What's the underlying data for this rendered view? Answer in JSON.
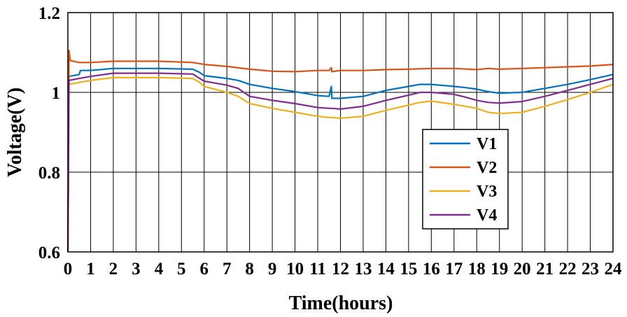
{
  "chart_data": {
    "type": "line",
    "title": "",
    "xlabel": "Time(hours)",
    "ylabel": "Voltage(V)",
    "xlim": [
      0,
      24
    ],
    "ylim": [
      0.6,
      1.2
    ],
    "xticks": [
      "0",
      "1",
      "2",
      "3",
      "4",
      "5",
      "6",
      "7",
      "8",
      "9",
      "10",
      "11",
      "12",
      "13",
      "14",
      "15",
      "16",
      "17",
      "18",
      "19",
      "20",
      "21",
      "22",
      "23",
      "24"
    ],
    "yticks": [
      "0.6",
      "0.8",
      "1",
      "1.2"
    ],
    "grid": true,
    "legend_position": "lower-right",
    "series": [
      {
        "name": "V1",
        "color": "#0072BD",
        "points": [
          [
            0,
            0.6
          ],
          [
            0.05,
            1.04
          ],
          [
            0.5,
            1.045
          ],
          [
            0.55,
            1.055
          ],
          [
            1,
            1.055
          ],
          [
            2,
            1.06
          ],
          [
            3,
            1.06
          ],
          [
            4,
            1.06
          ],
          [
            5.5,
            1.058
          ],
          [
            5.8,
            1.05
          ],
          [
            6,
            1.042
          ],
          [
            7,
            1.035
          ],
          [
            7.5,
            1.03
          ],
          [
            8,
            1.02
          ],
          [
            9,
            1.01
          ],
          [
            10,
            1.002
          ],
          [
            11,
            0.992
          ],
          [
            11.5,
            0.99
          ],
          [
            11.6,
            1.015
          ],
          [
            11.62,
            0.985
          ],
          [
            12,
            0.985
          ],
          [
            13,
            0.99
          ],
          [
            14,
            1.005
          ],
          [
            15,
            1.015
          ],
          [
            15.5,
            1.02
          ],
          [
            16,
            1.02
          ],
          [
            17,
            1.015
          ],
          [
            17.5,
            1.012
          ],
          [
            18,
            1.008
          ],
          [
            18.5,
            1.002
          ],
          [
            19,
            0.998
          ],
          [
            20,
            1.0
          ],
          [
            21,
            1.01
          ],
          [
            22,
            1.02
          ],
          [
            23,
            1.032
          ],
          [
            24,
            1.045
          ]
        ]
      },
      {
        "name": "V2",
        "color": "#D95319",
        "points": [
          [
            0,
            0.6
          ],
          [
            0.05,
            1.105
          ],
          [
            0.1,
            1.08
          ],
          [
            0.5,
            1.075
          ],
          [
            1,
            1.075
          ],
          [
            2,
            1.078
          ],
          [
            3,
            1.078
          ],
          [
            4,
            1.078
          ],
          [
            5.5,
            1.075
          ],
          [
            6,
            1.07
          ],
          [
            7,
            1.065
          ],
          [
            8,
            1.058
          ],
          [
            9,
            1.053
          ],
          [
            10,
            1.052
          ],
          [
            11,
            1.055
          ],
          [
            11.5,
            1.055
          ],
          [
            11.6,
            1.062
          ],
          [
            11.62,
            1.052
          ],
          [
            12,
            1.055
          ],
          [
            13,
            1.055
          ],
          [
            14,
            1.057
          ],
          [
            15,
            1.058
          ],
          [
            16,
            1.06
          ],
          [
            17,
            1.06
          ],
          [
            18,
            1.057
          ],
          [
            18.5,
            1.06
          ],
          [
            19,
            1.058
          ],
          [
            20,
            1.06
          ],
          [
            21,
            1.062
          ],
          [
            22,
            1.064
          ],
          [
            23,
            1.066
          ],
          [
            24,
            1.07
          ]
        ]
      },
      {
        "name": "V3",
        "color": "#EDB120",
        "points": [
          [
            0,
            0.6
          ],
          [
            0.05,
            1.02
          ],
          [
            0.5,
            1.025
          ],
          [
            1,
            1.03
          ],
          [
            2,
            1.037
          ],
          [
            3,
            1.037
          ],
          [
            4,
            1.037
          ],
          [
            5.5,
            1.035
          ],
          [
            5.8,
            1.025
          ],
          [
            6,
            1.015
          ],
          [
            7,
            1.0
          ],
          [
            7.5,
            0.99
          ],
          [
            8,
            0.972
          ],
          [
            9,
            0.96
          ],
          [
            10,
            0.95
          ],
          [
            11,
            0.94
          ],
          [
            11.5,
            0.937
          ],
          [
            11.6,
            0.937
          ],
          [
            12,
            0.935
          ],
          [
            13,
            0.94
          ],
          [
            14,
            0.955
          ],
          [
            15,
            0.968
          ],
          [
            15.5,
            0.975
          ],
          [
            16,
            0.978
          ],
          [
            17,
            0.97
          ],
          [
            17.5,
            0.965
          ],
          [
            18,
            0.96
          ],
          [
            18.5,
            0.95
          ],
          [
            19,
            0.947
          ],
          [
            20,
            0.95
          ],
          [
            21,
            0.965
          ],
          [
            22,
            0.982
          ],
          [
            23,
            1.0
          ],
          [
            24,
            1.02
          ]
        ]
      },
      {
        "name": "V4",
        "color": "#7E2F8E",
        "points": [
          [
            0,
            0.6
          ],
          [
            0.05,
            1.03
          ],
          [
            0.5,
            1.035
          ],
          [
            1,
            1.04
          ],
          [
            2,
            1.048
          ],
          [
            3,
            1.048
          ],
          [
            4,
            1.048
          ],
          [
            5.5,
            1.046
          ],
          [
            5.8,
            1.035
          ],
          [
            6,
            1.028
          ],
          [
            7,
            1.018
          ],
          [
            7.5,
            1.01
          ],
          [
            8,
            0.99
          ],
          [
            9,
            0.98
          ],
          [
            10,
            0.972
          ],
          [
            11,
            0.962
          ],
          [
            11.5,
            0.96
          ],
          [
            11.6,
            0.96
          ],
          [
            12,
            0.958
          ],
          [
            13,
            0.965
          ],
          [
            14,
            0.98
          ],
          [
            15,
            0.993
          ],
          [
            15.5,
            1.0
          ],
          [
            16,
            1.0
          ],
          [
            17,
            0.995
          ],
          [
            17.5,
            0.988
          ],
          [
            18,
            0.98
          ],
          [
            18.5,
            0.975
          ],
          [
            19,
            0.973
          ],
          [
            20,
            0.977
          ],
          [
            21,
            0.99
          ],
          [
            22,
            1.005
          ],
          [
            23,
            1.02
          ],
          [
            24,
            1.035
          ]
        ]
      }
    ]
  }
}
